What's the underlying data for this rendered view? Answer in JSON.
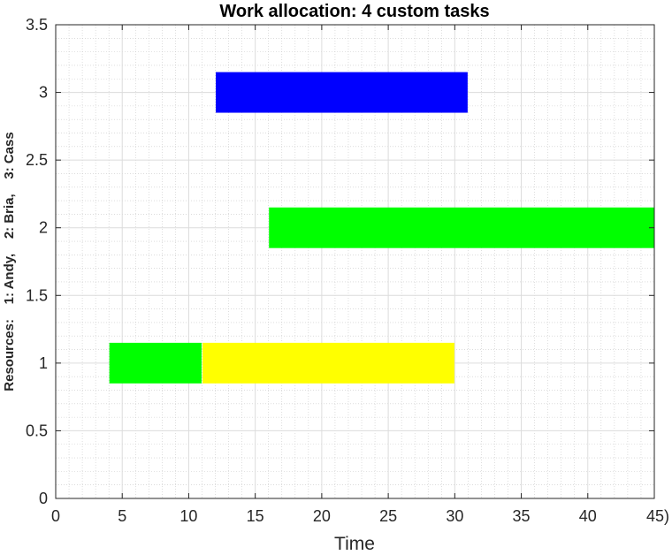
{
  "chart_data": {
    "type": "gantt",
    "title": "Work allocation: 4 custom tasks",
    "xlabel": "Time",
    "ylabel": "Resources:    1: Andy,    2: Bria,    3: Cass",
    "xlim": [
      0,
      45
    ],
    "ylim": [
      0,
      3.5
    ],
    "xticks": [
      "0",
      "5",
      "10",
      "15",
      "20",
      "25",
      "30",
      "35",
      "40",
      "45)"
    ],
    "yticks": [
      "0",
      "0.5",
      "1",
      "1.5",
      "2",
      "2.5",
      "3",
      "3.5"
    ],
    "grid": true,
    "minor_grid": true,
    "bar_height": 0.3,
    "tasks": [
      {
        "resource": 1,
        "start": 4.0,
        "end": 11.0,
        "color": "#00ff00"
      },
      {
        "resource": 1,
        "start": 11.0,
        "end": 30.0,
        "color": "#ffff00"
      },
      {
        "resource": 2,
        "start": 16.0,
        "end": 45.0,
        "color": "#00ff00"
      },
      {
        "resource": 3,
        "start": 12.0,
        "end": 31.0,
        "color": "#0000ff"
      }
    ]
  }
}
